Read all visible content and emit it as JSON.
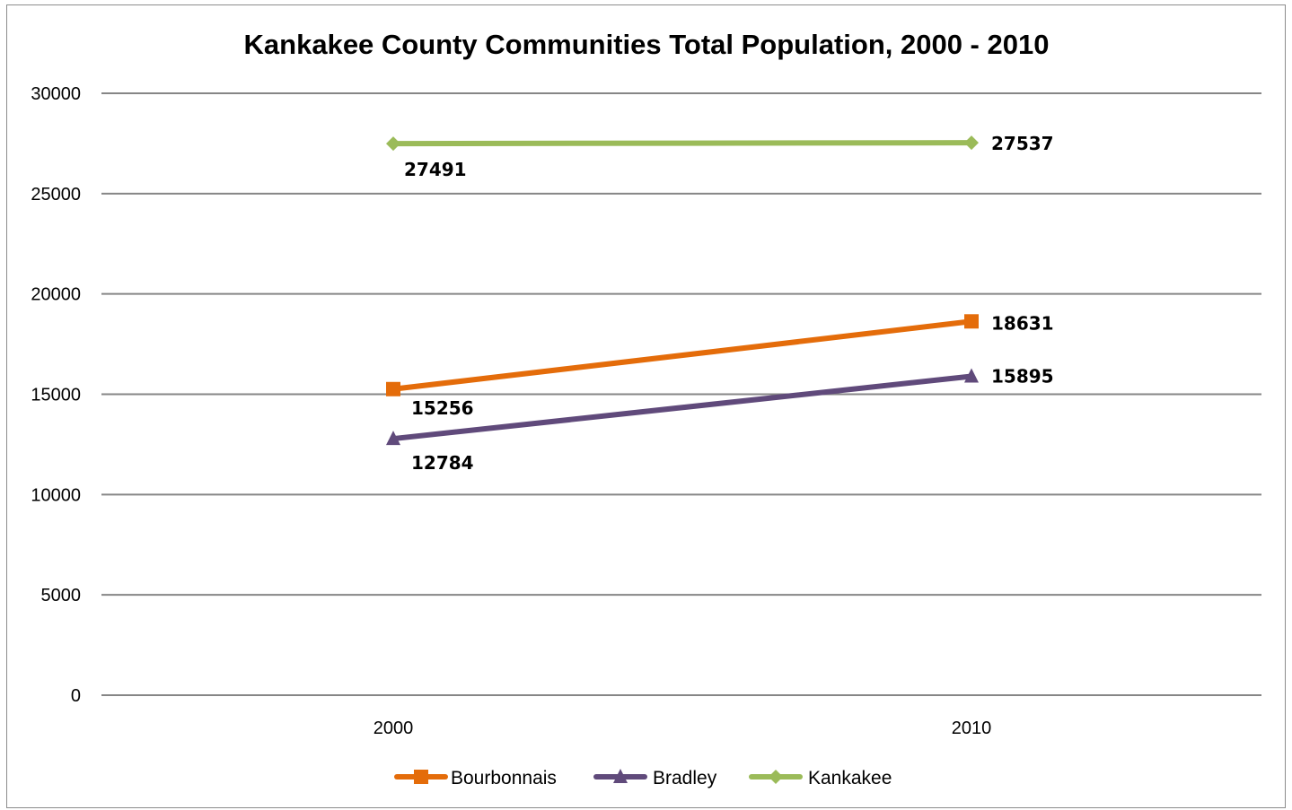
{
  "chart_data": {
    "type": "line",
    "title": "Kankakee County Communities Total Population, 2000 - 2010",
    "categories": [
      "2000",
      "2010"
    ],
    "ylim": [
      0,
      30000
    ],
    "yticks": [
      "0",
      "5000",
      "10000",
      "15000",
      "20000",
      "25000",
      "30000"
    ],
    "grid": true,
    "legend_position": "bottom",
    "series": [
      {
        "name": "Bourbonnais",
        "values": [
          15256,
          18631
        ],
        "labels": [
          "15256",
          "18631"
        ],
        "color": "#E46C0A",
        "marker": "square"
      },
      {
        "name": "Bradley",
        "values": [
          12784,
          15895
        ],
        "labels": [
          "12784",
          "15895"
        ],
        "color": "#604A7B",
        "marker": "triangle"
      },
      {
        "name": "Kankakee",
        "values": [
          27491,
          27537
        ],
        "labels": [
          "27491",
          "27537"
        ],
        "color": "#9BBB59",
        "marker": "diamond"
      }
    ]
  }
}
